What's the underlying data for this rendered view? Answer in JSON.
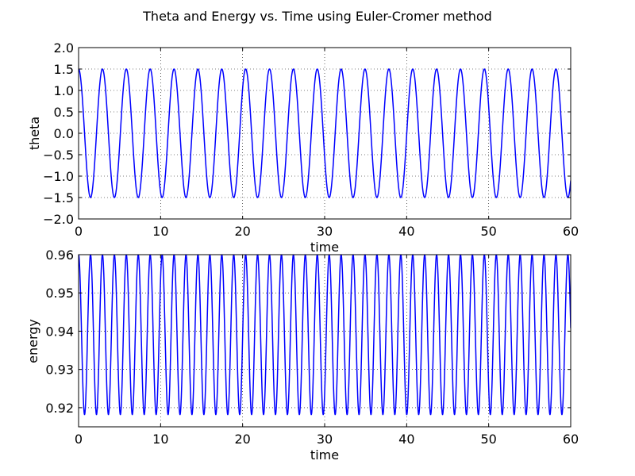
{
  "figure": {
    "title": "Theta and Energy vs. Time using Euler-Cromer  method",
    "line_color": "#0000ff",
    "grid_color": "#000000"
  },
  "chart_data": [
    {
      "type": "line",
      "title": "",
      "xlabel": "time",
      "ylabel": "theta",
      "xlim": [
        0,
        60
      ],
      "ylim": [
        -2.0,
        2.0
      ],
      "xticks": [
        0,
        10,
        20,
        30,
        40,
        50,
        60
      ],
      "xtick_labels": [
        "0",
        "10",
        "20",
        "30",
        "40",
        "50",
        "60"
      ],
      "yticks": [
        -2.0,
        -1.5,
        -1.0,
        -0.5,
        0.0,
        0.5,
        1.0,
        1.5,
        2.0
      ],
      "ytick_labels": [
        "−2.0",
        "−1.5",
        "−1.0",
        "−0.5",
        "0.0",
        "0.5",
        "1.0",
        "1.5",
        "2.0"
      ],
      "grid": true,
      "series": [
        {
          "color": "#0000ff",
          "model": "sinusoid",
          "t_start": 0,
          "t_end": 60,
          "amplitude": 1.5,
          "period": 2.91,
          "initial_value": 1.5,
          "offset": 0.0
        }
      ]
    },
    {
      "type": "line",
      "title": "",
      "xlabel": "time",
      "ylabel": "energy",
      "xlim": [
        0,
        60
      ],
      "ylim": [
        0.915,
        0.96
      ],
      "xticks": [
        0,
        10,
        20,
        30,
        40,
        50,
        60
      ],
      "xtick_labels": [
        "0",
        "10",
        "20",
        "30",
        "40",
        "50",
        "60"
      ],
      "yticks": [
        0.92,
        0.93,
        0.94,
        0.95,
        0.96
      ],
      "ytick_labels": [
        "0.92",
        "0.93",
        "0.94",
        "0.95",
        "0.96"
      ],
      "grid": true,
      "series": [
        {
          "color": "#0000ff",
          "model": "oscillation",
          "t_start": 0,
          "t_end": 60,
          "min": 0.9182,
          "max": 0.96,
          "period": 1.455,
          "initial_value": 0.96
        }
      ]
    }
  ]
}
